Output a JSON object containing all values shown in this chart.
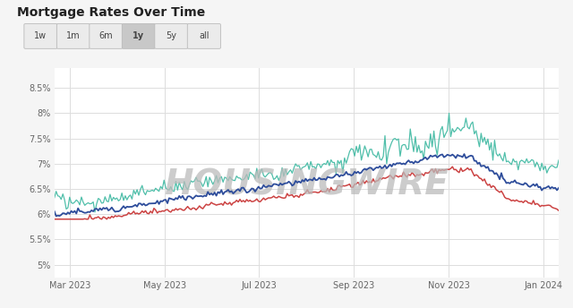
{
  "title": "Mortgage Rates Over Time",
  "buttons": [
    "1w",
    "1m",
    "6m",
    "1y",
    "5y",
    "all"
  ],
  "active_button": "1y",
  "watermark": "HOUSINGWIRE",
  "background_color": "#f5f5f5",
  "plot_bg_color": "#ffffff",
  "grid_color": "#dddddd",
  "yticks": [
    5.0,
    5.5,
    6.0,
    6.5,
    7.0,
    7.5,
    8.0,
    8.5
  ],
  "ylim": [
    4.75,
    8.9
  ],
  "xtick_labels": [
    "Mar 2023",
    "May 2023",
    "Jul 2023",
    "Sep 2023",
    "Nov 2023",
    "Jan 2024"
  ],
  "line_colors": {
    "teal": "#50bfaa",
    "blue": "#2e4d9b",
    "red": "#cc4444"
  },
  "n_points": 300
}
